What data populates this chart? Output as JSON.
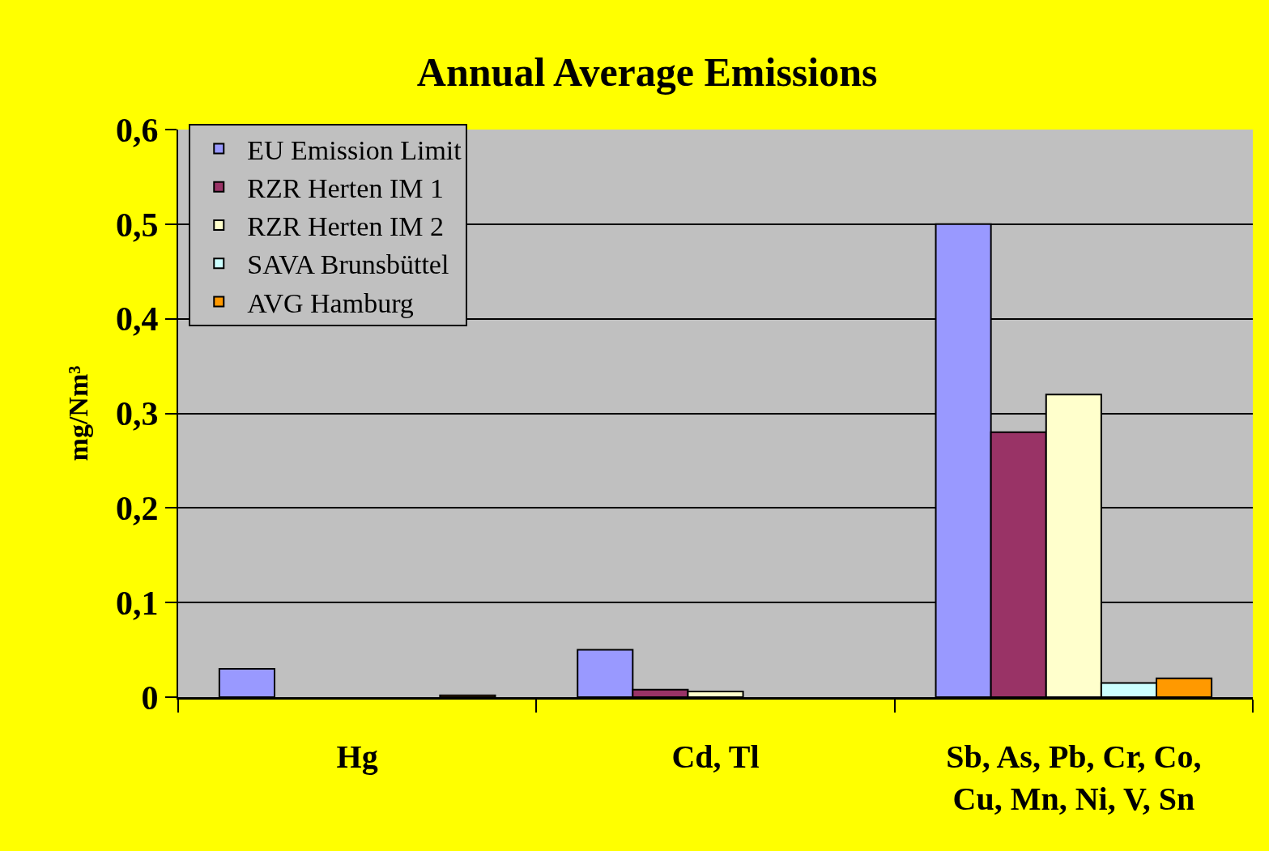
{
  "chart_data": {
    "type": "bar",
    "title": "Annual Average Emissions",
    "ylabel": "mg/Nm³",
    "categories": [
      "Hg",
      "Cd, Tl",
      "Sb, As, Pb, Cr, Co, Cu, Mn, Ni, V, Sn"
    ],
    "series": [
      {
        "name": "EU Emission Limit",
        "color": "#9999ff",
        "values": [
          0.03,
          0.05,
          0.5
        ]
      },
      {
        "name": "RZR Herten IM 1",
        "color": "#993366",
        "values": [
          null,
          0.008,
          0.28
        ]
      },
      {
        "name": "RZR Herten IM 2",
        "color": "#ffffcc",
        "values": [
          null,
          0.006,
          0.32
        ]
      },
      {
        "name": "SAVA Brunsbüttel",
        "color": "#ccffff",
        "values": [
          null,
          null,
          0.015
        ]
      },
      {
        "name": "AVG Hamburg",
        "color": "#ff9900",
        "values": [
          0.002,
          null,
          0.02
        ]
      }
    ],
    "ylim": [
      0,
      0.6
    ],
    "yticks": [
      0,
      {
        "value": 0.1,
        "label": "0,1"
      },
      {
        "value": 0.2,
        "label": "0,2"
      },
      {
        "value": 0.3,
        "label": "0,3"
      },
      {
        "value": 0.4,
        "label": "0,4"
      },
      {
        "value": 0.5,
        "label": "0,5"
      },
      {
        "value": 0.6,
        "label": "0,6"
      }
    ],
    "grid": "y",
    "legend": "top left"
  }
}
